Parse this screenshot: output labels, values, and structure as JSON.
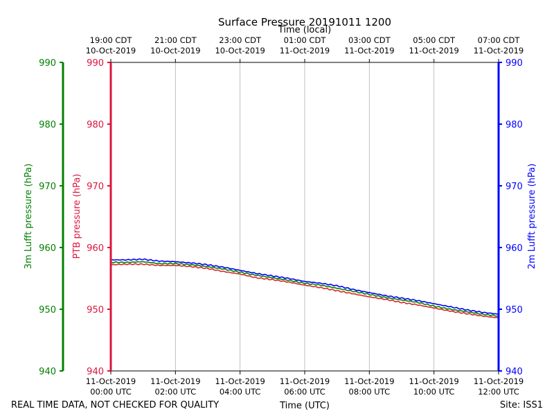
{
  "chart_data": {
    "type": "line",
    "title": "Surface Pressure 20191011 1200",
    "xlabel_top": "Time (local)",
    "xlabel_bottom": "Time (UTC)",
    "footer_left": "REAL TIME DATA, NOT CHECKED FOR QUALITY",
    "footer_right": "Site: ISS1",
    "x_range_hours": [
      0,
      12
    ],
    "ylim": [
      940,
      990
    ],
    "y_ticks": [
      940,
      950,
      960,
      970,
      980,
      990
    ],
    "grid": "vertical-only",
    "axes": {
      "left_outer": {
        "label": "3m Lufft pressure (hPa)",
        "color": "#008000"
      },
      "left_inner": {
        "label": "PTB pressure (hPa)",
        "color": "#dc143c"
      },
      "right": {
        "label": "2m Lufft pressure (hPa)",
        "color": "#0000ff"
      }
    },
    "bottom_ticks": [
      {
        "h": 0,
        "l1": "11-Oct-2019",
        "l2": "00:00 UTC"
      },
      {
        "h": 2,
        "l1": "11-Oct-2019",
        "l2": "02:00 UTC"
      },
      {
        "h": 4,
        "l1": "11-Oct-2019",
        "l2": "04:00 UTC"
      },
      {
        "h": 6,
        "l1": "11-Oct-2019",
        "l2": "06:00 UTC"
      },
      {
        "h": 8,
        "l1": "11-Oct-2019",
        "l2": "08:00 UTC"
      },
      {
        "h": 10,
        "l1": "11-Oct-2019",
        "l2": "10:00 UTC"
      },
      {
        "h": 12,
        "l1": "11-Oct-2019",
        "l2": "12:00 UTC"
      }
    ],
    "top_ticks": [
      {
        "h": 0,
        "l1": "19:00 CDT",
        "l2": "10-Oct-2019"
      },
      {
        "h": 2,
        "l1": "21:00 CDT",
        "l2": "10-Oct-2019"
      },
      {
        "h": 4,
        "l1": "23:00 CDT",
        "l2": "10-Oct-2019"
      },
      {
        "h": 6,
        "l1": "01:00 CDT",
        "l2": "11-Oct-2019"
      },
      {
        "h": 8,
        "l1": "03:00 CDT",
        "l2": "11-Oct-2019"
      },
      {
        "h": 10,
        "l1": "05:00 CDT",
        "l2": "11-Oct-2019"
      },
      {
        "h": 12,
        "l1": "07:00 CDT",
        "l2": "11-Oct-2019"
      }
    ],
    "series": [
      {
        "name": "2m Lufft",
        "color": "#0000ff",
        "x": [
          0,
          0.5,
          1,
          1.5,
          2,
          2.5,
          3,
          3.5,
          4,
          4.5,
          5,
          5.5,
          6,
          6.5,
          7,
          7.5,
          8,
          8.5,
          9,
          9.5,
          10,
          10.5,
          11,
          11.5,
          12
        ],
        "values": [
          958.0,
          958.0,
          958.1,
          957.8,
          957.7,
          957.5,
          957.2,
          956.8,
          956.3,
          955.8,
          955.4,
          955.0,
          954.5,
          954.2,
          953.8,
          953.2,
          952.7,
          952.2,
          951.8,
          951.4,
          950.9,
          950.4,
          949.9,
          949.5,
          949.2
        ]
      },
      {
        "name": "3m Lufft",
        "color": "#008000",
        "x": [
          0,
          0.5,
          1,
          1.5,
          2,
          2.5,
          3,
          3.5,
          4,
          4.5,
          5,
          5.5,
          6,
          6.5,
          7,
          7.5,
          8,
          8.5,
          9,
          9.5,
          10,
          10.5,
          11,
          11.5,
          12
        ],
        "values": [
          957.6,
          957.6,
          957.7,
          957.4,
          957.4,
          957.2,
          956.9,
          956.5,
          956.0,
          955.5,
          955.1,
          954.7,
          954.2,
          953.9,
          953.4,
          952.9,
          952.4,
          951.9,
          951.5,
          951.1,
          950.5,
          950.0,
          949.6,
          949.2,
          948.9
        ]
      },
      {
        "name": "PTB",
        "color": "#d62728",
        "x": [
          0,
          0.5,
          1,
          1.5,
          2,
          2.5,
          3,
          3.5,
          4,
          4.5,
          5,
          5.5,
          6,
          6.5,
          7,
          7.5,
          8,
          8.5,
          9,
          9.5,
          10,
          10.5,
          11,
          11.5,
          12
        ],
        "values": [
          957.2,
          957.3,
          957.3,
          957.1,
          957.1,
          956.9,
          956.6,
          956.1,
          955.7,
          955.1,
          954.8,
          954.4,
          953.9,
          953.5,
          953.0,
          952.5,
          952.0,
          951.6,
          951.1,
          950.7,
          950.2,
          949.7,
          949.3,
          948.9,
          948.6
        ]
      }
    ]
  }
}
